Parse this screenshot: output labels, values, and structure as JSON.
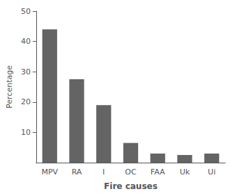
{
  "chart_data": {
    "type": "bar",
    "categories": [
      "MPV",
      "RA",
      "I",
      "OC",
      "FAA",
      "Uk",
      "Ui"
    ],
    "values": [
      44.0,
      27.5,
      19.0,
      6.5,
      3.0,
      2.5,
      3.0
    ],
    "color": "#646464",
    "xlabel": "Fire causes",
    "ylabel": "Percentage",
    "ylim": [
      0,
      50
    ],
    "yticks": [
      10,
      20,
      30,
      40,
      50
    ],
    "grid": false
  }
}
